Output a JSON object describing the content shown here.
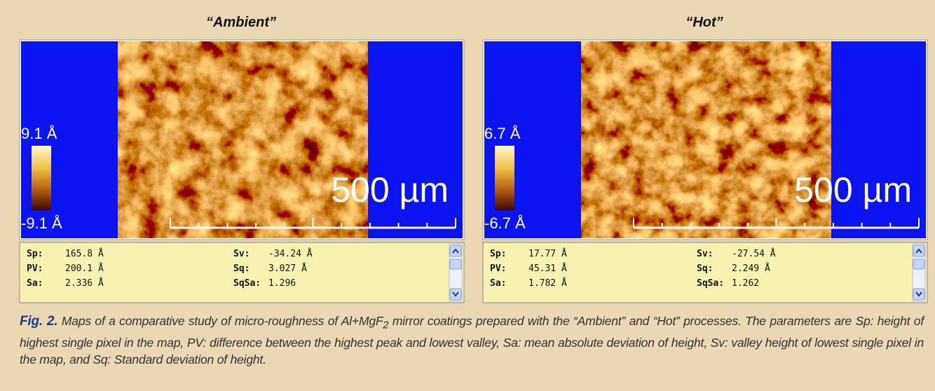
{
  "panels": [
    {
      "title": "“Ambient”",
      "scale_max": "9.1 Å",
      "scale_min": "-9.1 Å",
      "scale_bar": "500 µm",
      "stats": [
        [
          "Sp:",
          "165.8 Å",
          "Sv:",
          "-34.24 Å"
        ],
        [
          "PV:",
          "200.1 Å",
          "Sq:",
          "3.027 Å"
        ],
        [
          "Sa:",
          "2.336 Å",
          "SqSa:",
          "1.296"
        ]
      ]
    },
    {
      "title": "“Hot”",
      "scale_max": "6.7 Å",
      "scale_min": "-6.7 Å",
      "scale_bar": "500 µm",
      "stats": [
        [
          "Sp:",
          "17.77 Å",
          "Sv:",
          "-27.54 Å"
        ],
        [
          "PV:",
          "45.31 Å",
          "Sq:",
          "2.249 Å"
        ],
        [
          "Sa:",
          "1.782 Å",
          "SqSa:",
          "1.262"
        ]
      ]
    }
  ],
  "caption": {
    "label": "Fig. 2.",
    "text_before": "Maps of a comparative study of micro-roughness of Al+MgF",
    "subscript": "2",
    "text_after": "mirror coatings prepared with the “Ambient” and “Hot” processes. The parameters are Sp: height of highest single pixel in the map, PV: difference between the highest peak and lowest valley, Sa: mean absolute deviation of height, Sv: valley height of lowest single pixel in the map, and Sq: Standard deviation of height."
  }
}
